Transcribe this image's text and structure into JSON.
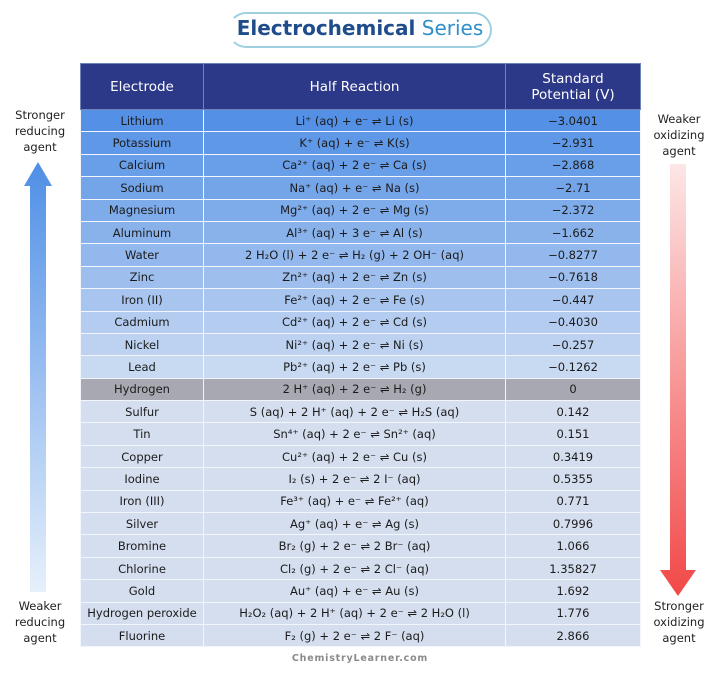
{
  "title": {
    "main": "Electrochemical",
    "accent": "Series"
  },
  "side_labels": {
    "top_left": "Stronger reducing agent",
    "bottom_left": "Weaker reducing agent",
    "top_right": "Weaker oxidizing agent",
    "bottom_right": "Stronger oxidizing agent"
  },
  "table": {
    "columns": [
      "Electrode",
      "Half Reaction",
      "Standard Potential (V)"
    ],
    "rows": [
      [
        "Lithium",
        "Li⁺ (aq) + e⁻ ⇌ Li (s)",
        "−3.0401"
      ],
      [
        "Potassium",
        "K⁺ (aq) + e⁻ ⇌ K(s)",
        "−2.931"
      ],
      [
        "Calcium",
        "Ca²⁺ (aq) + 2 e⁻ ⇌ Ca (s)",
        "−2.868"
      ],
      [
        "Sodium",
        "Na⁺ (aq) + e⁻ ⇌ Na (s)",
        "−2.71"
      ],
      [
        "Magnesium",
        "Mg²⁺ (aq) + 2 e⁻ ⇌ Mg (s)",
        "−2.372"
      ],
      [
        "Aluminum",
        "Al³⁺ (aq) + 3 e⁻ ⇌ Al (s)",
        "−1.662"
      ],
      [
        "Water",
        "2 H₂O (l) + 2 e⁻ ⇌ H₂ (g) + 2 OH⁻ (aq)",
        "−0.8277"
      ],
      [
        "Zinc",
        "Zn²⁺ (aq) + 2 e⁻ ⇌ Zn (s)",
        "−0.7618"
      ],
      [
        "Iron (II)",
        "Fe²⁺ (aq) + 2 e⁻ ⇌ Fe (s)",
        "−0.447"
      ],
      [
        "Cadmium",
        "Cd²⁺ (aq) + 2 e⁻ ⇌ Cd (s)",
        "−0.4030"
      ],
      [
        "Nickel",
        "Ni²⁺ (aq) + 2 e⁻ ⇌ Ni (s)",
        "−0.257"
      ],
      [
        "Lead",
        "Pb²⁺ (aq) + 2 e⁻ ⇌ Pb (s)",
        "−0.1262"
      ],
      [
        "Hydrogen",
        "2 H⁺ (aq) + 2 e⁻ ⇌ H₂ (g)",
        "0"
      ],
      [
        "Sulfur",
        "S (aq) + 2 H⁺ (aq) + 2 e⁻ ⇌ H₂S (aq)",
        "0.142"
      ],
      [
        "Tin",
        "Sn⁴⁺ (aq) + 2 e⁻ ⇌ Sn²⁺ (aq)",
        "0.151"
      ],
      [
        "Copper",
        "Cu²⁺ (aq) + 2 e⁻ ⇌ Cu (s)",
        "0.3419"
      ],
      [
        "Iodine",
        "I₂ (s) + 2 e⁻ ⇌ 2 I⁻ (aq)",
        "0.5355"
      ],
      [
        "Iron (III)",
        "Fe³⁺ (aq) + e⁻ ⇌ Fe²⁺ (aq)",
        "0.771"
      ],
      [
        "Silver",
        "Ag⁺ (aq) + e⁻ ⇌ Ag (s)",
        "0.7996"
      ],
      [
        "Bromine",
        "Br₂ (g) + 2 e⁻ ⇌ 2 Br⁻ (aq)",
        "1.066"
      ],
      [
        "Chlorine",
        "Cl₂ (g) + 2 e⁻ ⇌ 2 Cl⁻ (aq)",
        "1.35827"
      ],
      [
        "Gold",
        "Au⁺ (aq) + e⁻ ⇌ Au (s)",
        "1.692"
      ],
      [
        "Hydrogen peroxide",
        "H₂O₂ (aq) + 2 H⁺ (aq) + 2 e⁻ ⇌ 2 H₂O (l)",
        "1.776"
      ],
      [
        "Fluorine",
        "F₂ (g) + 2 e⁻ ⇌ 2 F⁻ (aq)",
        "2.866"
      ]
    ]
  },
  "footer": "ChemistryLearner.com"
}
